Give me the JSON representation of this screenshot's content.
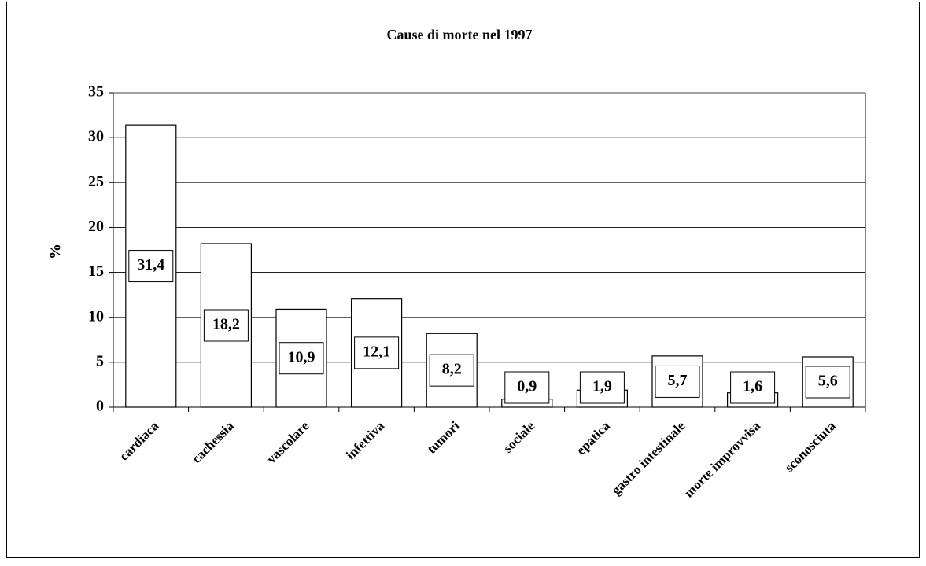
{
  "chart_data": {
    "type": "bar",
    "title": "Cause di morte nel 1997",
    "y_label": "%",
    "categories": [
      "cardiaca",
      "cachessia",
      "vascolare",
      "infettiva",
      "tumori",
      "sociale",
      "epatica",
      "gastro intestinale",
      "morte improvvisa",
      "sconosciuta"
    ],
    "values": [
      31.4,
      18.2,
      10.9,
      12.1,
      8.2,
      0.9,
      1.9,
      5.7,
      1.6,
      5.6
    ],
    "value_labels": [
      "31,4",
      "18,2",
      "10,9",
      "12,1",
      "8,2",
      "0,9",
      "1,9",
      "5,7",
      "1,6",
      "5,6"
    ],
    "color": "#ffffff",
    "ylim": [
      0,
      35
    ],
    "yticks": [
      0,
      5,
      10,
      15,
      20,
      25,
      30,
      35
    ],
    "grid": true
  }
}
